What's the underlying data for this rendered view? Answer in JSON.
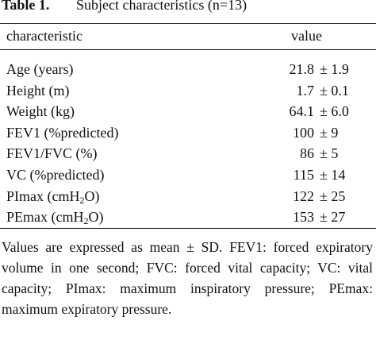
{
  "title": {
    "label": "Table 1.",
    "text": "Subject characteristics (n=13)"
  },
  "table": {
    "header": [
      "characteristic",
      "value"
    ],
    "rows": [
      {
        "label": "Age (years)",
        "mean": "21.8",
        "sd": "± 1.9"
      },
      {
        "label": "Height (m)",
        "mean": "1.7",
        "sd": "± 0.1"
      },
      {
        "label": "Weight (kg)",
        "mean": "64.1",
        "sd": "± 6.0"
      },
      {
        "label": "FEV1 (%predicted)",
        "mean": "100",
        "sd": "± 9"
      },
      {
        "label": "FEV1/FVC (%)",
        "mean": "86",
        "sd": "± 5"
      },
      {
        "label": "VC (%predicted)",
        "mean": "115",
        "sd": "± 14"
      },
      {
        "label": [
          "PImax (cmH",
          "2",
          "O)"
        ],
        "mean": "122",
        "sd": "± 25"
      },
      {
        "label": [
          "PEmax (cmH",
          "2",
          "O)"
        ],
        "mean": "153",
        "sd": "± 27"
      }
    ]
  },
  "footnote": "Values are expressed as mean ± SD. FEV1: forced expiratory volume in one second; FVC: forced vital capacity; VC: vital capacity; PImax: maximum inspiratory pressure; PEmax: maximum expiratory pressure."
}
